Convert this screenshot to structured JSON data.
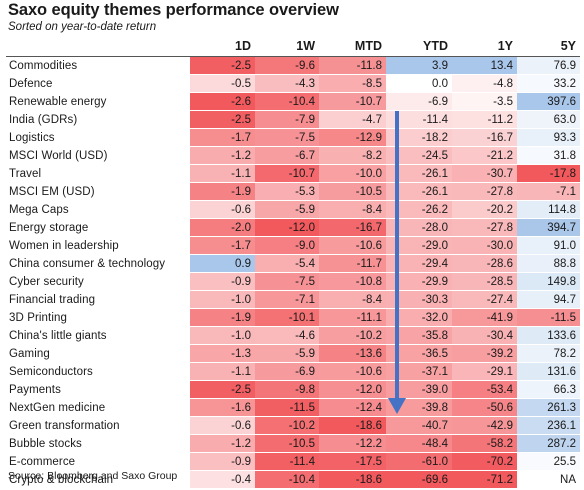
{
  "title": "Saxo equity themes performance overview",
  "subtitle": "Sorted on year-to-date return",
  "source": "Source: Bloomberg and Saxo Group",
  "chart_data": {
    "type": "table",
    "columns": [
      "",
      "1D",
      "1W",
      "MTD",
      "YTD",
      "1Y",
      "5Y"
    ],
    "rows": [
      {
        "name": "Commodities",
        "values": [
          "-2.5",
          "-9.6",
          "-11.8",
          "3.9",
          "13.4",
          "76.9"
        ]
      },
      {
        "name": "Defence",
        "values": [
          "-0.5",
          "-4.3",
          "-8.5",
          "0.0",
          "-4.8",
          "33.2"
        ]
      },
      {
        "name": "Renewable energy",
        "values": [
          "-2.6",
          "-10.4",
          "-10.7",
          "-6.9",
          "-3.5",
          "397.6"
        ]
      },
      {
        "name": "India (GDRs)",
        "values": [
          "-2.5",
          "-7.9",
          "-4.7",
          "-11.4",
          "-11.2",
          "63.0"
        ]
      },
      {
        "name": "Logistics",
        "values": [
          "-1.7",
          "-7.5",
          "-12.9",
          "-18.2",
          "-16.7",
          "93.3"
        ]
      },
      {
        "name": "MSCI World (USD)",
        "values": [
          "-1.2",
          "-6.7",
          "-8.2",
          "-24.5",
          "-21.2",
          "31.8"
        ]
      },
      {
        "name": "Travel",
        "values": [
          "-1.1",
          "-10.7",
          "-10.0",
          "-26.1",
          "-30.7",
          "-17.8"
        ]
      },
      {
        "name": "MSCI EM (USD)",
        "values": [
          "-1.9",
          "-5.3",
          "-10.5",
          "-26.1",
          "-27.8",
          "-7.1"
        ]
      },
      {
        "name": "Mega Caps",
        "values": [
          "-0.6",
          "-5.9",
          "-8.4",
          "-26.2",
          "-20.2",
          "114.8"
        ]
      },
      {
        "name": "Energy storage",
        "values": [
          "-2.0",
          "-12.0",
          "-16.7",
          "-28.0",
          "-27.8",
          "394.7"
        ]
      },
      {
        "name": "Women in leadership",
        "values": [
          "-1.7",
          "-9.0",
          "-10.6",
          "-29.0",
          "-30.0",
          "91.0"
        ]
      },
      {
        "name": "China consumer & technology",
        "values": [
          "0.9",
          "-5.4",
          "-11.7",
          "-29.4",
          "-28.6",
          "88.8"
        ]
      },
      {
        "name": "Cyber security",
        "values": [
          "-0.9",
          "-7.5",
          "-10.8",
          "-29.9",
          "-28.5",
          "149.8"
        ]
      },
      {
        "name": "Financial trading",
        "values": [
          "-1.0",
          "-7.1",
          "-8.4",
          "-30.3",
          "-27.4",
          "94.7"
        ]
      },
      {
        "name": "3D Printing",
        "values": [
          "-1.9",
          "-10.1",
          "-11.1",
          "-32.0",
          "-41.9",
          "-11.5"
        ]
      },
      {
        "name": "China's little giants",
        "values": [
          "-1.0",
          "-4.6",
          "-10.2",
          "-35.8",
          "-30.4",
          "133.6"
        ]
      },
      {
        "name": "Gaming",
        "values": [
          "-1.3",
          "-5.9",
          "-13.6",
          "-36.5",
          "-39.2",
          "78.2"
        ]
      },
      {
        "name": "Semiconductors",
        "values": [
          "-1.1",
          "-6.9",
          "-10.6",
          "-37.1",
          "-29.1",
          "131.6"
        ]
      },
      {
        "name": "Payments",
        "values": [
          "-2.5",
          "-9.8",
          "-12.0",
          "-39.0",
          "-53.4",
          "66.3"
        ]
      },
      {
        "name": "NextGen medicine",
        "values": [
          "-1.6",
          "-11.5",
          "-12.4",
          "-39.8",
          "-50.6",
          "261.3"
        ]
      },
      {
        "name": "Green transformation",
        "values": [
          "-0.6",
          "-10.2",
          "-18.6",
          "-40.7",
          "-42.9",
          "236.1"
        ]
      },
      {
        "name": "Bubble stocks",
        "values": [
          "-1.2",
          "-10.5",
          "-12.2",
          "-48.4",
          "-58.2",
          "287.2"
        ]
      },
      {
        "name": "E-commerce",
        "values": [
          "-0.9",
          "-11.4",
          "-17.5",
          "-61.0",
          "-70.2",
          "25.5"
        ]
      },
      {
        "name": "Crypto & blockchain",
        "values": [
          "-0.4",
          "-10.4",
          "-18.6",
          "-69.6",
          "-71.2",
          "NA"
        ]
      }
    ],
    "color_scale": {
      "negative": "#f2595d",
      "neutral": "#ffffff",
      "positive": "#a9c7ea"
    }
  }
}
